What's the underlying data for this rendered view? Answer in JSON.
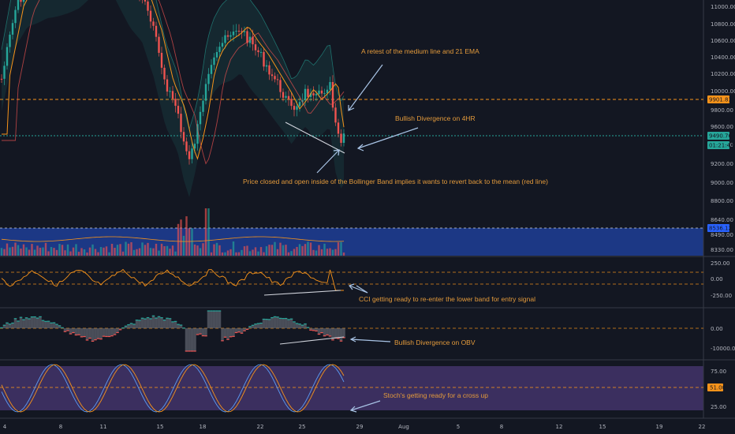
{
  "price_axis": [
    "11000.00",
    "10800.00",
    "10600.00",
    "10400.00",
    "10200.00",
    "10000.00",
    "9800.00",
    "9600.00",
    "9400.00",
    "9200.00",
    "9000.00",
    "8800.00",
    "8640.00",
    "8490.00",
    "8330.00"
  ],
  "price_tags": [
    {
      "name": "resistance-level-tag",
      "text": "9901.83",
      "color": "#f7931a"
    },
    {
      "name": "last-price-tag",
      "text": "9490.76",
      "color": "#26a69a"
    },
    {
      "name": "countdown-tag",
      "text": "01:21:43",
      "color": "#26a69a"
    }
  ],
  "volume_tag": {
    "text": "8536.12",
    "color": "#2962ff"
  },
  "cci_axis": [
    "250.00",
    "0.00",
    "-250.00"
  ],
  "obv_axis": [
    "0.00",
    "-10000.00"
  ],
  "stoch_axis": [
    "75.00",
    "25.00"
  ],
  "stoch_tag": {
    "text": "51.00",
    "color": "#f7931a"
  },
  "date_axis": [
    "4",
    "8",
    "11",
    "15",
    "18",
    "22",
    "25",
    "29",
    "Aug",
    "5",
    "8",
    "12",
    "15",
    "19",
    "22"
  ],
  "annotations": {
    "retest": "A retest of the medium line and 21 EMA",
    "bullish_div_4hr": "Bullish Divergence on 4HR",
    "bollinger": "Price closed and open inside of the Bollinger Band implies it wants to revert back to the mean (red line)",
    "cci": "CCI getting ready to re-enter the lower band for entry signal",
    "obv": "Bullish Divergence on OBV",
    "stoch": "Stoch's getting ready for a cross up"
  },
  "colors": {
    "background": "#131722",
    "up_candle": "#26a69a",
    "down_candle": "#ef5350",
    "ema": "#f7931a",
    "bollinger_fill": "#26a69a",
    "volume_band": "#2962ff",
    "stoch_band": "#7e57c2",
    "annotation_text": "#e39a3b",
    "arrow": "#a9c4e6"
  }
}
